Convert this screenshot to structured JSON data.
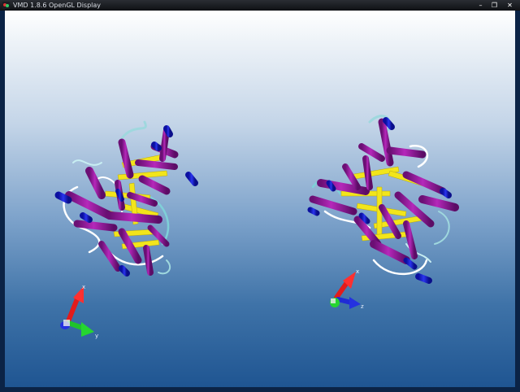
{
  "window": {
    "title": "VMD 1.8.6 OpenGL Display",
    "controls": {
      "minimize": "–",
      "maximize": "❐",
      "close": "✕"
    }
  },
  "scene": {
    "background_top": "#ffffff",
    "background_bottom": "#1f5592",
    "colors": {
      "helix": "#a01aa6",
      "helix_dark": "#6b0f74",
      "helix_end": "#1d23d6",
      "sheet": "#f2e51b",
      "coil": "#ffffff",
      "turn": "#7fd0d8"
    },
    "axes_left": {
      "labels": [
        "x",
        "y"
      ]
    },
    "axes_right": {
      "labels": [
        "x",
        "z"
      ]
    }
  }
}
